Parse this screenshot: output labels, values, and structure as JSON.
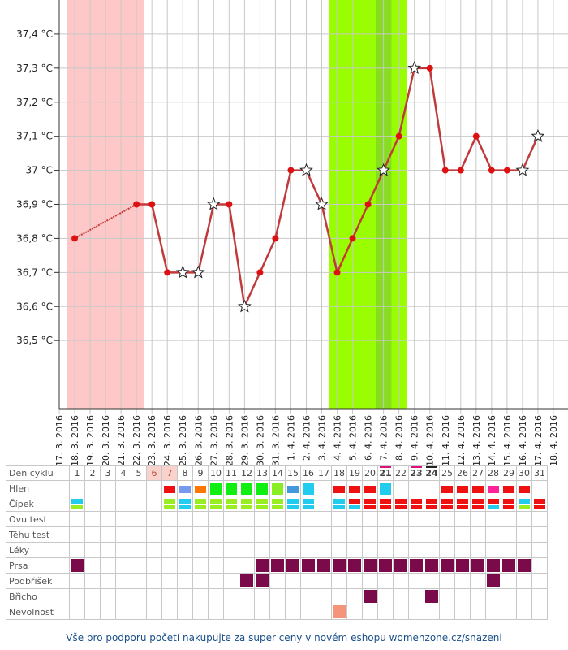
{
  "chart_data": {
    "type": "line",
    "title": "",
    "xlabel": "",
    "ylabel": "",
    "y_tick_labels": [
      "36,5 °C",
      "36,6 °C",
      "36,7 °C",
      "36,8 °C",
      "36,9 °C",
      "37 °C",
      "37,1 °C",
      "37,2 °C",
      "37,3 °C",
      "37,4 °C"
    ],
    "y_tick_values": [
      36.5,
      36.6,
      36.7,
      36.8,
      36.9,
      37.0,
      37.1,
      37.2,
      37.3,
      37.4
    ],
    "ylim": [
      36.3,
      37.5
    ],
    "grid": true,
    "dates": [
      "17. 3. 2016",
      "18. 3. 2016",
      "19. 3. 2016",
      "20. 3. 2016",
      "21. 3. 2016",
      "22. 3. 2016",
      "23. 3. 2016",
      "24. 3. 2016",
      "25. 3. 2016",
      "26. 3. 2016",
      "27. 3. 2016",
      "28. 3. 2016",
      "29. 3. 2016",
      "30. 3. 2016",
      "31. 3. 2016",
      "1. 4. 2016",
      "2. 4. 2016",
      "3. 4. 2016",
      "4. 4. 2016",
      "5. 4. 2016",
      "6. 4. 2016",
      "7. 4. 2016",
      "8. 4. 2016",
      "9. 4. 2016",
      "10. 4. 2016",
      "11. 4. 2016",
      "12. 4. 2016",
      "13. 4. 2016",
      "14. 4. 2016",
      "15. 4. 2016",
      "16. 4. 2016",
      "17. 4. 2016",
      "18. 4. 2016"
    ],
    "series": [
      {
        "values": [
          null,
          36.8,
          null,
          null,
          null,
          36.9,
          36.9,
          36.7,
          36.7,
          36.7,
          36.9,
          36.9,
          36.6,
          36.7,
          36.8,
          37.0,
          37.0,
          36.9,
          36.7,
          36.8,
          36.9,
          37.0,
          37.1,
          37.3,
          37.3,
          37.0,
          37.0,
          37.1,
          37.0,
          37.0,
          37.0,
          37.1,
          null
        ],
        "markers": [
          "",
          "dot",
          "",
          "",
          "",
          "dot",
          "dot",
          "dot",
          "star",
          "star",
          "star",
          "dot",
          "star",
          "dot",
          "dot",
          "dot",
          "star",
          "star",
          "dot",
          "dot",
          "dot",
          "star",
          "dot",
          "star",
          "dot",
          "dot",
          "dot",
          "dot",
          "dot",
          "dot",
          "star",
          "star",
          ""
        ]
      }
    ],
    "bands": [
      {
        "from": 0.5,
        "to": 5.5,
        "color": "#ffc8c8"
      },
      {
        "from": 17.5,
        "to": 22.5,
        "color": "#99ff00"
      },
      {
        "from": 20.5,
        "to": 21.5,
        "color": "#66b32e"
      },
      {
        "from": 20.5,
        "to": 21.5,
        "color": "#88dd22"
      }
    ],
    "colors": {
      "line": "#c0393b",
      "dot": "#dd1111",
      "grid": "#c8c8c8"
    }
  },
  "table": {
    "row_labels": [
      "Den cyklu",
      "Hlen",
      "Čípek",
      "Ovu test",
      "Těhu test",
      "Léky",
      "Prsa",
      "Podbřišek",
      "Břicho",
      "Nevolnost"
    ],
    "days": [
      "1",
      "2",
      "3",
      "4",
      "5",
      "6",
      "7",
      "8",
      "9",
      "10",
      "11",
      "12",
      "13",
      "14",
      "15",
      "16",
      "17",
      "18",
      "19",
      "20",
      "21",
      "22",
      "23",
      "24",
      "25",
      "26",
      "27",
      "28",
      "29",
      "30",
      "31"
    ],
    "day_header_bg": [
      "",
      "",
      "",
      "",
      "",
      "#f9d2cc",
      "#f9d2cc",
      "",
      "",
      "",
      "",
      "",
      "",
      "",
      "",
      "",
      "",
      "",
      "",
      "",
      "",
      "",
      "",
      "",
      "",
      "",
      "",
      "",
      "",
      "",
      ""
    ],
    "day_header_line": [
      "",
      "",
      "",
      "",
      "",
      "",
      "",
      "",
      "",
      "",
      "",
      "",
      "",
      "",
      "",
      "",
      "",
      "",
      "",
      "",
      "#dd1177",
      "",
      "#dd1177",
      "#222222",
      "",
      "",
      "",
      "",
      "",
      "",
      ""
    ],
    "hlen": [
      "",
      "",
      "",
      "",
      "",
      "",
      "#ee1111",
      "#7799ee",
      "#ff7700",
      "#11ee11",
      "#11ee11",
      "#11ee11",
      "#11ee11",
      "#88ee22",
      "#4499dd",
      "#22ccee",
      "",
      "#ee1111",
      "#ee1111",
      "#ee1111",
      "#22ccee",
      "",
      "",
      "",
      "#ee1111",
      "#ee1111",
      "#ee1111",
      "#ff2299",
      "#ee1111",
      "#ee1111",
      ""
    ],
    "cipek_top": [
      "#22ccee",
      "",
      "",
      "",
      "",
      "",
      "#99ee22",
      "#22ccee",
      "#99ee22",
      "#99ee22",
      "#99ee22",
      "#99ee22",
      "#99ee22",
      "#99ee22",
      "#22ccee",
      "#22ccee",
      "",
      "#22ccee",
      "#ee1111",
      "#ee1111",
      "#ee1111",
      "#ee1111",
      "#ee1111",
      "#ee1111",
      "#ee1111",
      "#ee1111",
      "#ee1111",
      "#ee1111",
      "#ee1111",
      "#22ccee",
      "#ee1111"
    ],
    "cipek_bottom": [
      "#99ee22",
      "",
      "",
      "",
      "",
      "",
      "#99ee22",
      "#22ccee",
      "#99ee22",
      "#99ee22",
      "#99ee22",
      "#99ee22",
      "#99ee22",
      "#99ee22",
      "#22ccee",
      "#22ccee",
      "",
      "#22ccee",
      "#22ccee",
      "#ee1111",
      "#ee1111",
      "#ee1111",
      "#ee1111",
      "#ee1111",
      "#ee1111",
      "#ee1111",
      "#ee1111",
      "#22ccee",
      "#ee1111",
      "#99ee22",
      "#ee1111"
    ],
    "prsa": [
      "#7a0a4a",
      "",
      "",
      "",
      "",
      "",
      "",
      "",
      "",
      "",
      "",
      "",
      "#7a0a4a",
      "#7a0a4a",
      "#7a0a4a",
      "#7a0a4a",
      "#7a0a4a",
      "#7a0a4a",
      "#7a0a4a",
      "#7a0a4a",
      "#7a0a4a",
      "#7a0a4a",
      "#7a0a4a",
      "#7a0a4a",
      "#7a0a4a",
      "#7a0a4a",
      "#7a0a4a",
      "#7a0a4a",
      "#7a0a4a",
      "#7a0a4a",
      ""
    ],
    "podbrisek": [
      "",
      "",
      "",
      "",
      "",
      "",
      "",
      "",
      "",
      "",
      "",
      "#7a0a4a",
      "#7a0a4a",
      "",
      "",
      "",
      "",
      "",
      "",
      "",
      "",
      "",
      "",
      "",
      "",
      "",
      "",
      "#7a0a4a",
      "",
      "",
      ""
    ],
    "bricho": [
      "",
      "",
      "",
      "",
      "",
      "",
      "",
      "",
      "",
      "",
      "",
      "",
      "",
      "",
      "",
      "",
      "",
      "",
      "",
      "#7a0a4a",
      "",
      "",
      "",
      "#7a0a4a",
      "",
      "",
      "",
      "",
      "",
      "",
      ""
    ],
    "nevolnost": [
      "",
      "",
      "",
      "",
      "",
      "",
      "",
      "",
      "",
      "",
      "",
      "",
      "",
      "",
      "",
      "",
      "",
      "#f4947a",
      "",
      "",
      "",
      "",
      "",
      "",
      "",
      "",
      "",
      "",
      "",
      "",
      ""
    ]
  },
  "footer": {
    "text": "Vše pro podporu početí nakupujte za super ceny v novém eshopu womenzone.cz/snazeni"
  }
}
